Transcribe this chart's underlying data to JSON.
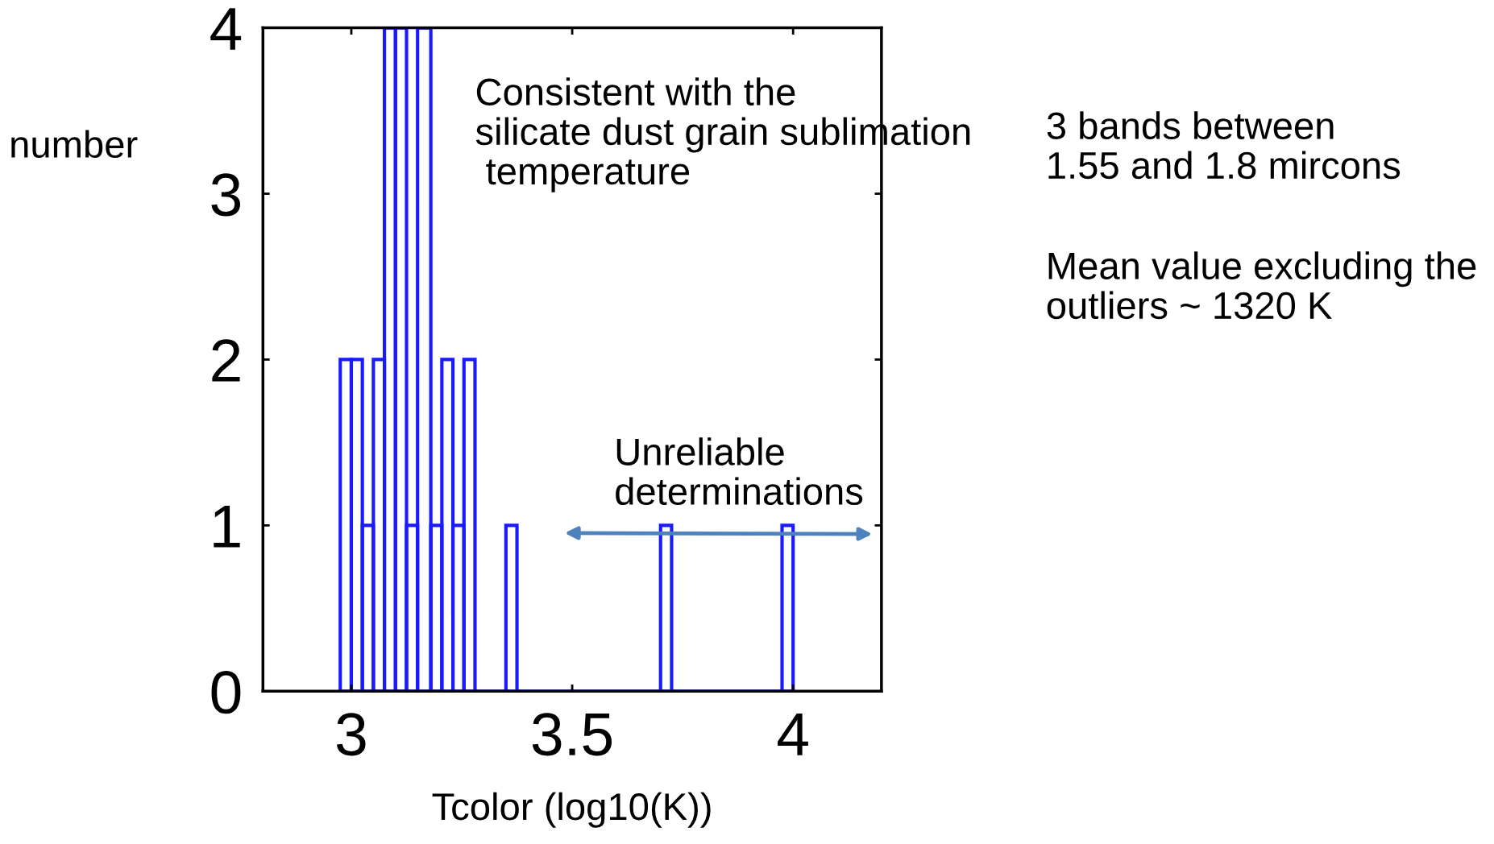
{
  "chart_data": {
    "type": "histogram",
    "xlabel": "Tcolor (log10(K))",
    "ylabel": "number",
    "bins": [
      2.975,
      3.0,
      3.025,
      3.05,
      3.075,
      3.1,
      3.125,
      3.15,
      3.18,
      3.205,
      3.23,
      3.255,
      3.28,
      3.35,
      3.375,
      3.7,
      3.725,
      3.975,
      4.0
    ],
    "values": [
      2,
      2,
      1,
      2,
      4,
      4,
      1,
      4,
      1,
      2,
      1,
      2,
      0,
      1,
      0,
      1,
      0,
      1
    ],
    "color": "#1a1aff",
    "xlim": [
      2.8,
      4.2
    ],
    "xticks": [
      3,
      3.5,
      4
    ],
    "ylim": [
      0,
      4
    ],
    "yticks": [
      0,
      1,
      2,
      3,
      4
    ],
    "grid": false,
    "annotations": [
      "Consistent with the\nsilicate dust grain sublimation\n temperature",
      "Unreliable\ndeterminations",
      "3 bands between\n1.55 and 1.8 mircons",
      "Mean value excluding the\noutliers ~ 1320 K"
    ]
  }
}
